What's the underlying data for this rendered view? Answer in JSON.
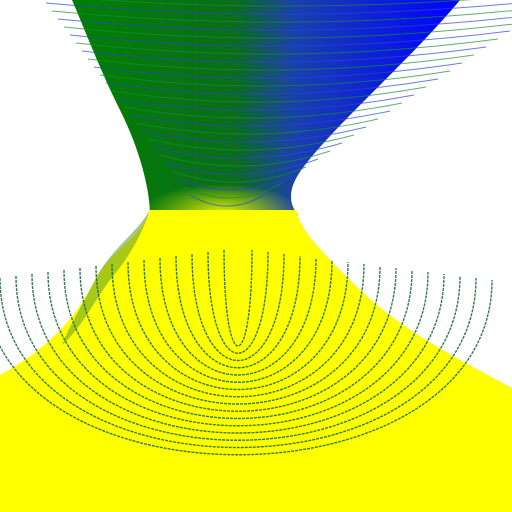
{
  "render": {
    "background": "#ffffff",
    "colors": {
      "green": "#008000",
      "blue": "#0000ff",
      "yellow": "#ffff00",
      "contour": "#1e6b3a"
    }
  }
}
